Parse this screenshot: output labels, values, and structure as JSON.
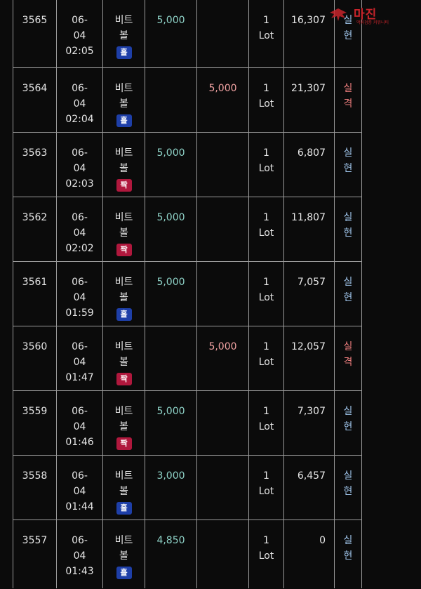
{
  "rows": [
    {
      "id": "3565",
      "date": "06-",
      "day": "04",
      "time": "02:05",
      "game_l1": "비트",
      "game_l2": "볼",
      "tag": "홀",
      "tag_type": "hol",
      "buy": "5,000",
      "sell": "",
      "lot_num": "1",
      "lot_unit": "Lot",
      "balance": "16,307",
      "res_l1": "실",
      "res_l2": "현",
      "res_type": "win"
    },
    {
      "id": "3564",
      "date": "06-",
      "day": "04",
      "time": "02:04",
      "game_l1": "비트",
      "game_l2": "볼",
      "tag": "홀",
      "tag_type": "hol",
      "buy": "",
      "sell": "5,000",
      "lot_num": "1",
      "lot_unit": "Lot",
      "balance": "21,307",
      "res_l1": "실",
      "res_l2": "격",
      "res_type": "lose"
    },
    {
      "id": "3563",
      "date": "06-",
      "day": "04",
      "time": "02:03",
      "game_l1": "비트",
      "game_l2": "볼",
      "tag": "짝",
      "tag_type": "jjak",
      "buy": "5,000",
      "sell": "",
      "lot_num": "1",
      "lot_unit": "Lot",
      "balance": "6,807",
      "res_l1": "실",
      "res_l2": "현",
      "res_type": "win"
    },
    {
      "id": "3562",
      "date": "06-",
      "day": "04",
      "time": "02:02",
      "game_l1": "비트",
      "game_l2": "볼",
      "tag": "짝",
      "tag_type": "jjak",
      "buy": "5,000",
      "sell": "",
      "lot_num": "1",
      "lot_unit": "Lot",
      "balance": "11,807",
      "res_l1": "실",
      "res_l2": "현",
      "res_type": "win"
    },
    {
      "id": "3561",
      "date": "06-",
      "day": "04",
      "time": "01:59",
      "game_l1": "비트",
      "game_l2": "볼",
      "tag": "홀",
      "tag_type": "hol",
      "buy": "5,000",
      "sell": "",
      "lot_num": "1",
      "lot_unit": "Lot",
      "balance": "7,057",
      "res_l1": "실",
      "res_l2": "현",
      "res_type": "win"
    },
    {
      "id": "3560",
      "date": "06-",
      "day": "04",
      "time": "01:47",
      "game_l1": "비트",
      "game_l2": "볼",
      "tag": "짝",
      "tag_type": "jjak",
      "buy": "",
      "sell": "5,000",
      "lot_num": "1",
      "lot_unit": "Lot",
      "balance": "12,057",
      "res_l1": "실",
      "res_l2": "격",
      "res_type": "lose"
    },
    {
      "id": "3559",
      "date": "06-",
      "day": "04",
      "time": "01:46",
      "game_l1": "비트",
      "game_l2": "볼",
      "tag": "짝",
      "tag_type": "jjak",
      "buy": "5,000",
      "sell": "",
      "lot_num": "1",
      "lot_unit": "Lot",
      "balance": "7,307",
      "res_l1": "실",
      "res_l2": "현",
      "res_type": "win"
    },
    {
      "id": "3558",
      "date": "06-",
      "day": "04",
      "time": "01:44",
      "game_l1": "비트",
      "game_l2": "볼",
      "tag": "홀",
      "tag_type": "hol",
      "buy": "3,000",
      "sell": "",
      "lot_num": "1",
      "lot_unit": "Lot",
      "balance": "6,457",
      "res_l1": "실",
      "res_l2": "현",
      "res_type": "win"
    },
    {
      "id": "3557",
      "date": "06-",
      "day": "04",
      "time": "01:43",
      "game_l1": "비트",
      "game_l2": "볼",
      "tag": "홀",
      "tag_type": "hol",
      "buy": "4,850",
      "sell": "",
      "lot_num": "1",
      "lot_unit": "Lot",
      "balance": "0",
      "res_l1": "실",
      "res_l2": "현",
      "res_type": "win"
    }
  ],
  "watermark": {
    "text": "먹튀검증 커뮤니티",
    "colors": {
      "brand": "#c8242b"
    },
    "icon": "winged-emblem-icon"
  },
  "colors": {
    "buy": "#8fd3c8",
    "sell": "#f2a3a3",
    "badge_hol": "#1e3fa8",
    "badge_jjak": "#b0183d",
    "result_win": "#9fc4ea",
    "result_lose": "#f07f7f"
  }
}
